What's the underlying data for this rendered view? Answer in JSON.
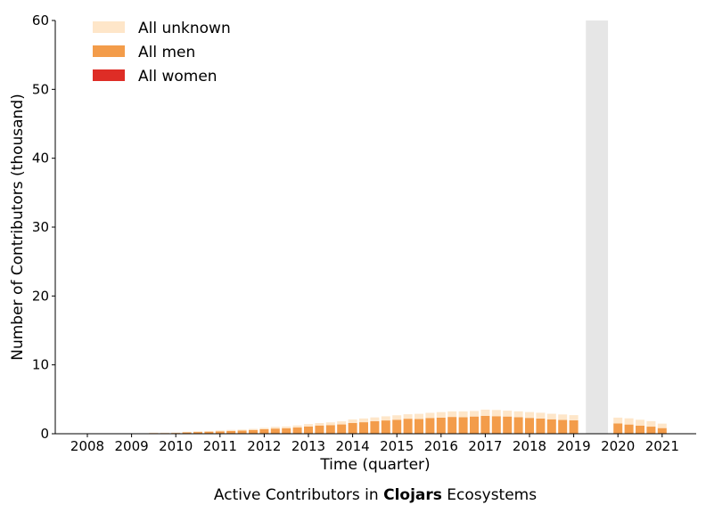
{
  "caption": {
    "prefix": "Active Contributors in ",
    "ecosystem": "Clojars",
    "suffix": " Ecosystems"
  },
  "chart_data": {
    "type": "bar",
    "stacked": true,
    "xlabel": "Time (quarter)",
    "ylabel": "Number of Contributors (thousand)",
    "ylim": [
      0,
      60
    ],
    "yticks": [
      0,
      10,
      20,
      30,
      40,
      50,
      60
    ],
    "xticks": [
      "2008",
      "2009",
      "2010",
      "2011",
      "2012",
      "2013",
      "2014",
      "2015",
      "2016",
      "2017",
      "2018",
      "2019",
      "2020",
      "2021"
    ],
    "xtick_index": [
      0,
      4,
      8,
      12,
      16,
      20,
      24,
      28,
      32,
      36,
      40,
      44,
      48,
      52
    ],
    "legend_position": "top-left",
    "shaded_region": {
      "start_index": 45.1,
      "end_index": 47.1,
      "color": "#e6e6e6"
    },
    "quarters": [
      "2008Q1",
      "2008Q2",
      "2008Q3",
      "2008Q4",
      "2009Q1",
      "2009Q2",
      "2009Q3",
      "2009Q4",
      "2010Q1",
      "2010Q2",
      "2010Q3",
      "2010Q4",
      "2011Q1",
      "2011Q2",
      "2011Q3",
      "2011Q4",
      "2012Q1",
      "2012Q2",
      "2012Q3",
      "2012Q4",
      "2013Q1",
      "2013Q2",
      "2013Q3",
      "2013Q4",
      "2014Q1",
      "2014Q2",
      "2014Q3",
      "2014Q4",
      "2015Q1",
      "2015Q2",
      "2015Q3",
      "2015Q4",
      "2016Q1",
      "2016Q2",
      "2016Q3",
      "2016Q4",
      "2017Q1",
      "2017Q2",
      "2017Q3",
      "2017Q4",
      "2018Q1",
      "2018Q2",
      "2018Q3",
      "2018Q4",
      "2019Q1",
      "2019Q2",
      "2019Q3",
      "2019Q4",
      "2020Q1",
      "2020Q2",
      "2020Q3",
      "2020Q4",
      "2021Q1",
      "2021Q2"
    ],
    "series": [
      {
        "name": "All women",
        "color": "#de2d26",
        "values": [
          0,
          0,
          0,
          0,
          0,
          0,
          0,
          0,
          0,
          0,
          0,
          0,
          0,
          0,
          0,
          0,
          0,
          0,
          0,
          0,
          0,
          0,
          0,
          0,
          0.02,
          0.02,
          0.02,
          0.03,
          0.03,
          0.03,
          0.04,
          0.04,
          0.04,
          0.04,
          0.04,
          0.05,
          0.05,
          0.05,
          0.05,
          0.05,
          0.05,
          0.05,
          0.05,
          0.05,
          0.05,
          null,
          null,
          null,
          0.04,
          0.04,
          0.03,
          0.03,
          0.02,
          null
        ]
      },
      {
        "name": "All men",
        "color": "#f39c4a",
        "values": [
          0,
          0,
          0,
          0,
          0,
          0.05,
          0.1,
          0.1,
          0.12,
          0.2,
          0.25,
          0.3,
          0.35,
          0.4,
          0.45,
          0.55,
          0.65,
          0.75,
          0.8,
          0.9,
          1.05,
          1.2,
          1.25,
          1.35,
          1.55,
          1.65,
          1.8,
          1.9,
          2.0,
          2.15,
          2.1,
          2.25,
          2.3,
          2.4,
          2.35,
          2.45,
          2.55,
          2.5,
          2.45,
          2.35,
          2.25,
          2.15,
          2.05,
          1.95,
          1.9,
          null,
          null,
          null,
          1.45,
          1.3,
          1.15,
          1.0,
          0.8,
          null
        ]
      },
      {
        "name": "All unknown",
        "color": "#fee6c9",
        "values": [
          0,
          0,
          0,
          0,
          0,
          0,
          0.05,
          0.05,
          0.05,
          0.08,
          0.1,
          0.1,
          0.12,
          0.15,
          0.15,
          0.15,
          0.2,
          0.25,
          0.25,
          0.3,
          0.35,
          0.35,
          0.4,
          0.45,
          0.5,
          0.55,
          0.55,
          0.6,
          0.65,
          0.65,
          0.75,
          0.75,
          0.8,
          0.8,
          0.85,
          0.8,
          0.9,
          0.9,
          0.85,
          0.85,
          0.85,
          0.85,
          0.8,
          0.8,
          0.75,
          null,
          null,
          null,
          0.85,
          0.9,
          0.85,
          0.8,
          0.65,
          null
        ]
      }
    ]
  }
}
